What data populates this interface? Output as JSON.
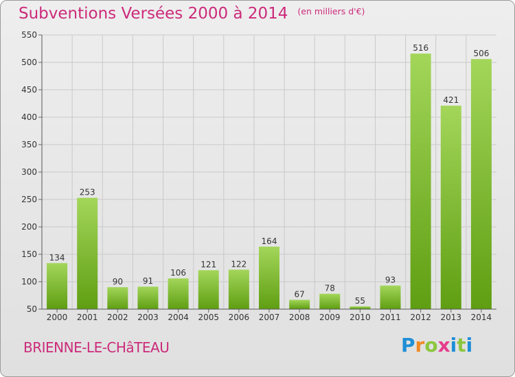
{
  "header": {
    "title": "Subventions Versées 2000 à 2014",
    "unit": "(en milliers d'€)"
  },
  "footer": {
    "commune": "BRIENNE-LE-CHâTEAU",
    "logo_letters": [
      "P",
      "r",
      "o",
      "x",
      "i",
      "t",
      "i"
    ],
    "logo_colors": [
      "#1f8fd6",
      "#f08a24",
      "#8cc63f",
      "#e63c8c",
      "#1f8fd6",
      "#8cc63f",
      "#1f8fd6"
    ]
  },
  "chart_data": {
    "type": "bar",
    "categories": [
      "2000",
      "2001",
      "2002",
      "2003",
      "2004",
      "2005",
      "2006",
      "2007",
      "2008",
      "2009",
      "2010",
      "2011",
      "2012",
      "2013",
      "2014"
    ],
    "values": [
      134,
      253,
      90,
      91,
      106,
      121,
      122,
      164,
      67,
      78,
      55,
      93,
      516,
      421,
      506
    ],
    "ylim": [
      50,
      550
    ],
    "yticks": [
      50,
      100,
      150,
      200,
      250,
      300,
      350,
      400,
      450,
      500,
      550
    ],
    "grid": true,
    "bar_color_light": "#a3d65a",
    "bar_color_dark": "#5f9e12"
  }
}
